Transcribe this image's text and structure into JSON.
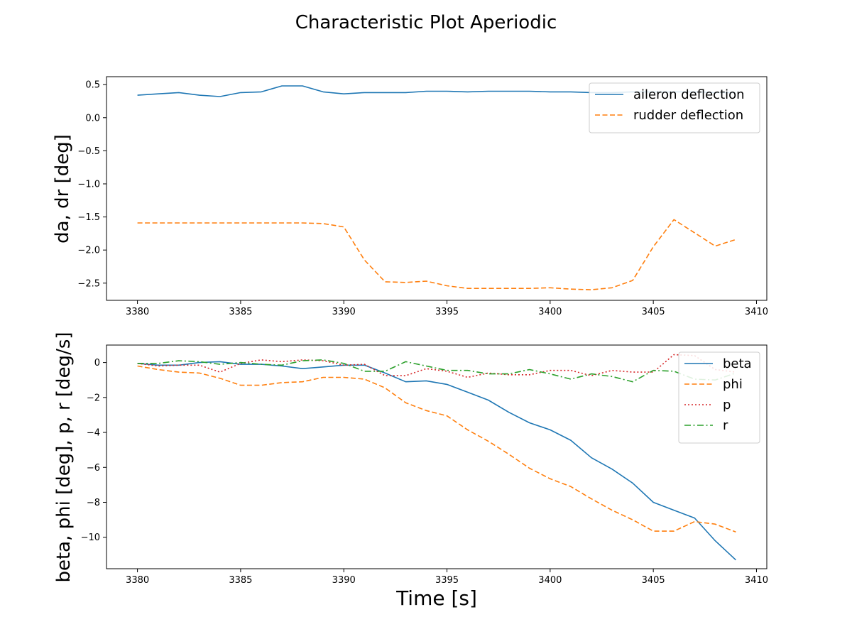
{
  "figure": {
    "title": "Characteristic Plot Aperiodic"
  },
  "chart_data": [
    {
      "type": "line",
      "title": "",
      "xlabel": "",
      "ylabel": "da, dr [deg]",
      "xlim": [
        3378.5,
        3410.5
      ],
      "ylim": [
        -2.76,
        0.62
      ],
      "xticks": [
        3380,
        3385,
        3390,
        3395,
        3400,
        3405,
        3410
      ],
      "xtick_labels": [
        "3380",
        "3385",
        "3390",
        "3395",
        "3400",
        "3405",
        "3410"
      ],
      "yticks": [
        0.5,
        0.0,
        -0.5,
        -1.0,
        -1.5,
        -2.0,
        -2.5
      ],
      "ytick_labels": [
        "0.5",
        "0.0",
        "−0.5",
        "−1.0",
        "−1.5",
        "−2.0",
        "−2.5"
      ],
      "grid": false,
      "legend_position": "upper right",
      "x": [
        3380,
        3381,
        3382,
        3383,
        3384,
        3385,
        3386,
        3387,
        3388,
        3389,
        3390,
        3391,
        3392,
        3393,
        3394,
        3395,
        3396,
        3397,
        3398,
        3399,
        3400,
        3401,
        3402,
        3403,
        3404,
        3405,
        3406,
        3407,
        3408,
        3409
      ],
      "series": [
        {
          "name": "aileron deflection",
          "color": "#1f77b4",
          "dash": "solid",
          "values": [
            0.34,
            0.36,
            0.38,
            0.34,
            0.32,
            0.38,
            0.39,
            0.48,
            0.48,
            0.39,
            0.36,
            0.38,
            0.38,
            0.38,
            0.4,
            0.4,
            0.39,
            0.4,
            0.4,
            0.4,
            0.39,
            0.39,
            0.38,
            0.38,
            0.39,
            0.39,
            0.39,
            0.39,
            0.38,
            0.38
          ]
        },
        {
          "name": "rudder deflection",
          "color": "#ff7f0e",
          "dash": "dashed",
          "values": [
            -1.59,
            -1.59,
            -1.59,
            -1.59,
            -1.59,
            -1.59,
            -1.59,
            -1.59,
            -1.59,
            -1.6,
            -1.65,
            -2.15,
            -2.48,
            -2.49,
            -2.47,
            -2.54,
            -2.58,
            -2.58,
            -2.58,
            -2.58,
            -2.57,
            -2.59,
            -2.6,
            -2.57,
            -2.46,
            -1.95,
            -1.54,
            -1.74,
            -1.94,
            -1.84
          ]
        }
      ]
    },
    {
      "type": "line",
      "title": "",
      "xlabel": "Time [s]",
      "ylabel": "beta, phi [deg], p, r [deg/s]",
      "xlim": [
        3378.5,
        3410.5
      ],
      "ylim": [
        -11.8,
        1.0
      ],
      "xticks": [
        3380,
        3385,
        3390,
        3395,
        3400,
        3405,
        3410
      ],
      "xtick_labels": [
        "3380",
        "3385",
        "3390",
        "3395",
        "3400",
        "3405",
        "3410"
      ],
      "yticks": [
        0,
        -2,
        -4,
        -6,
        -8,
        -10
      ],
      "ytick_labels": [
        "0",
        "−2",
        "−4",
        "−6",
        "−8",
        "−10"
      ],
      "grid": false,
      "legend_position": "upper right",
      "x": [
        3380,
        3381,
        3382,
        3383,
        3384,
        3385,
        3386,
        3387,
        3388,
        3389,
        3390,
        3391,
        3392,
        3393,
        3394,
        3395,
        3396,
        3397,
        3398,
        3399,
        3400,
        3401,
        3402,
        3403,
        3404,
        3405,
        3406,
        3407,
        3408,
        3409
      ],
      "series": [
        {
          "name": "beta",
          "color": "#1f77b4",
          "dash": "solid",
          "values": [
            -0.05,
            -0.15,
            -0.15,
            0.0,
            0.05,
            -0.1,
            -0.1,
            -0.2,
            -0.35,
            -0.25,
            -0.15,
            -0.15,
            -0.6,
            -1.1,
            -1.05,
            -1.25,
            -1.7,
            -2.15,
            -2.85,
            -3.45,
            -3.85,
            -4.45,
            -5.45,
            -6.1,
            -6.9,
            -8.0,
            -8.45,
            -8.9,
            -10.2,
            -11.3
          ]
        },
        {
          "name": "phi",
          "color": "#ff7f0e",
          "dash": "dashed",
          "values": [
            -0.2,
            -0.4,
            -0.55,
            -0.6,
            -0.9,
            -1.3,
            -1.3,
            -1.15,
            -1.1,
            -0.85,
            -0.85,
            -0.95,
            -1.45,
            -2.3,
            -2.75,
            -3.05,
            -3.85,
            -4.5,
            -5.25,
            -6.05,
            -6.65,
            -7.1,
            -7.8,
            -8.45,
            -9.0,
            -9.65,
            -9.65,
            -9.1,
            -9.25,
            -9.7
          ]
        },
        {
          "name": "p",
          "color": "#d62728",
          "dash": "dotted",
          "values": [
            -0.05,
            -0.2,
            -0.15,
            -0.15,
            -0.55,
            -0.05,
            0.15,
            0.05,
            0.15,
            0.1,
            -0.15,
            -0.1,
            -0.75,
            -0.75,
            -0.35,
            -0.5,
            -0.85,
            -0.6,
            -0.7,
            -0.7,
            -0.45,
            -0.45,
            -0.75,
            -0.45,
            -0.55,
            -0.55,
            0.45,
            0.4,
            -0.4,
            -0.55
          ]
        },
        {
          "name": "r",
          "color": "#2ca02c",
          "dash": "dashdot",
          "values": [
            -0.05,
            -0.05,
            0.1,
            0.05,
            -0.1,
            0.0,
            -0.1,
            -0.15,
            0.1,
            0.15,
            -0.05,
            -0.5,
            -0.5,
            0.05,
            -0.2,
            -0.45,
            -0.45,
            -0.65,
            -0.65,
            -0.4,
            -0.65,
            -0.95,
            -0.65,
            -0.8,
            -1.1,
            -0.45,
            -0.5,
            -0.95,
            -1.0,
            -0.6
          ]
        }
      ]
    }
  ]
}
